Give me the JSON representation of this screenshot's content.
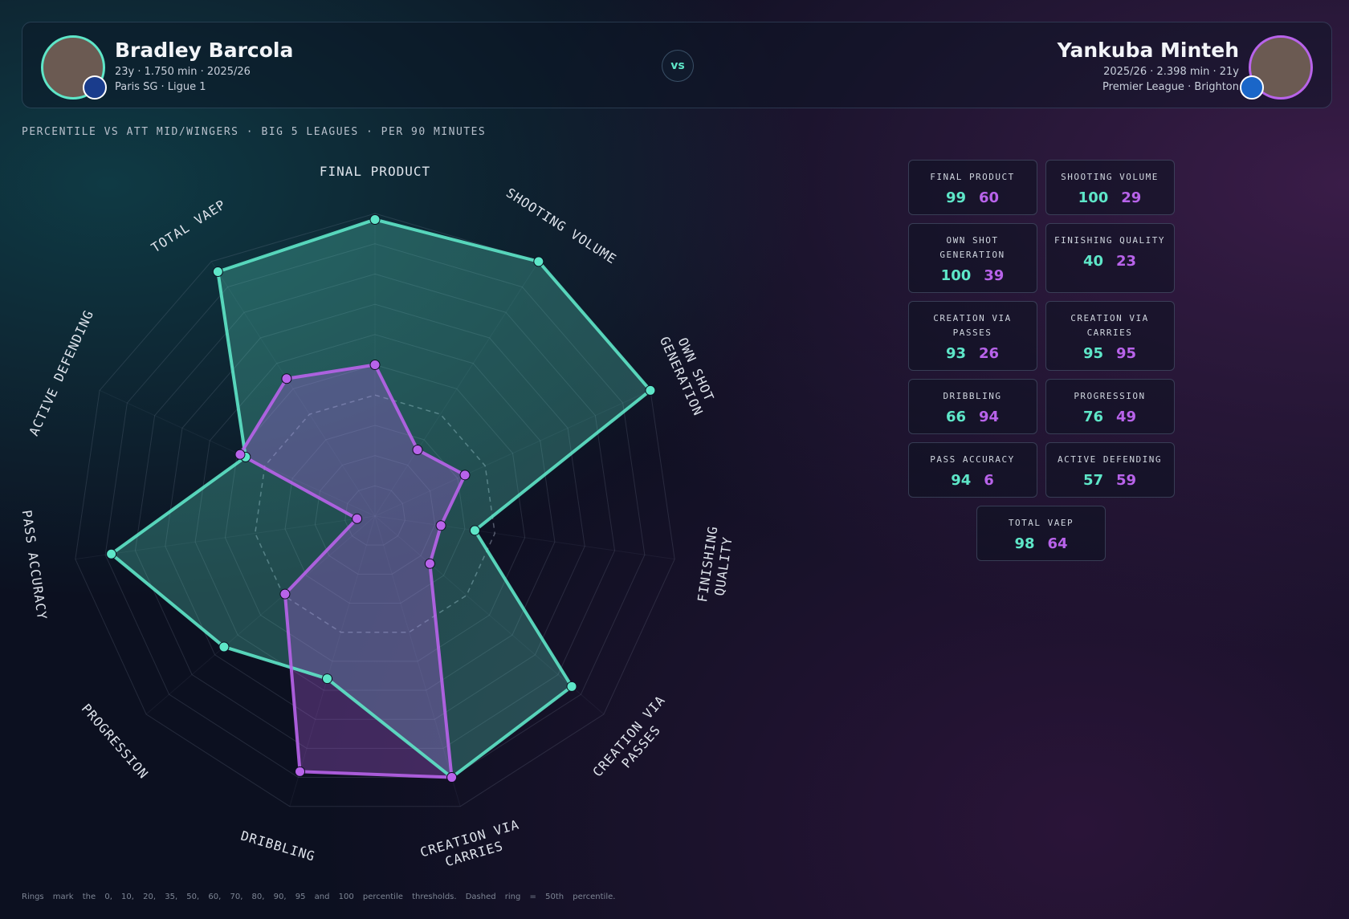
{
  "header": {
    "left": {
      "meta": "23y · 1.750 min · 2025/26",
      "club": "Paris SG · Ligue 1"
    },
    "vs": "vs",
    "right": {
      "meta": "2025/26 · 2.398 min · 21y",
      "club": "Premier League · Brighton"
    }
  },
  "chart_data": {
    "type": "radar",
    "subtitle": "PERCENTILE VS ATT MID/WINGERS · BIG 5 LEAGUES · PER 90 MINUTES",
    "categories": [
      "Final Product",
      "Shooting Volume",
      "Own Shot Generation",
      "Finishing Quality",
      "Creation via Passes",
      "Creation via Carries",
      "Dribbling",
      "Progression",
      "Pass Accuracy",
      "Active Defending",
      "Total VAEP"
    ],
    "series": [
      {
        "name": "Bradley Barcola",
        "color": "#5ee6c8",
        "values": [
          99,
          100,
          100,
          40,
          93,
          95,
          66,
          76,
          94,
          57,
          98
        ]
      },
      {
        "name": "Yankuba Minteh",
        "color": "#b863ea",
        "values": [
          60,
          29,
          39,
          23,
          26,
          95,
          94,
          49,
          6,
          59,
          64
        ]
      }
    ],
    "rticks": [
      0,
      10,
      20,
      35,
      50,
      60,
      70,
      80,
      90,
      95,
      100
    ],
    "dashed_ring": 50,
    "footnote": "Rings mark the 0, 10, 20, 35, 50, 60, 70, 80, 90, 95 and 100 percentile thresholds. Dashed ring = 50th percentile."
  }
}
